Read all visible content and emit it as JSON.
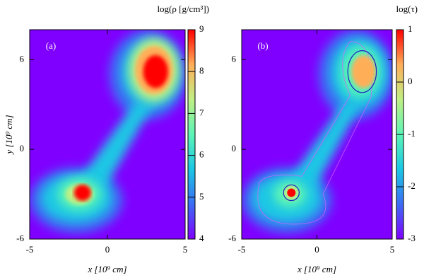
{
  "chart_data": [
    {
      "type": "heatmap",
      "panel_label": "(a)",
      "xlabel": "x [10⁹ cm]",
      "ylabel": "y [10⁹ cm]",
      "xlim": [
        -5,
        5
      ],
      "xticks": [
        -5,
        0,
        5
      ],
      "ylim": [
        -6,
        8
      ],
      "yticks": [
        -6,
        0,
        6
      ],
      "colorbar_label": "log(ρ [g/cm³])",
      "clim": [
        4,
        9
      ],
      "cticks": [
        4,
        5,
        6,
        7,
        8,
        9
      ],
      "colormap": [
        "#8000ff",
        "#3c6cf4",
        "#1ac7e4",
        "#5cf4b6",
        "#c0ef84",
        "#ffae58",
        "#ff0000"
      ]
    },
    {
      "type": "heatmap",
      "panel_label": "(b)",
      "xlabel": "x [10⁹ cm]",
      "xlim": [
        -5,
        5
      ],
      "xticks": [
        -5,
        0,
        5
      ],
      "ylim": [
        -6,
        8
      ],
      "yticks": [
        -6,
        0,
        6
      ],
      "colorbar_label": "log(τ)",
      "clim": [
        -3,
        1
      ],
      "cticks": [
        -3,
        -2,
        -1,
        0,
        1
      ],
      "colormap": [
        "#8000ff",
        "#3c6cf4",
        "#1ac7e4",
        "#5cf4b6",
        "#c0ef84",
        "#ffae58",
        "#ff0000"
      ]
    }
  ]
}
